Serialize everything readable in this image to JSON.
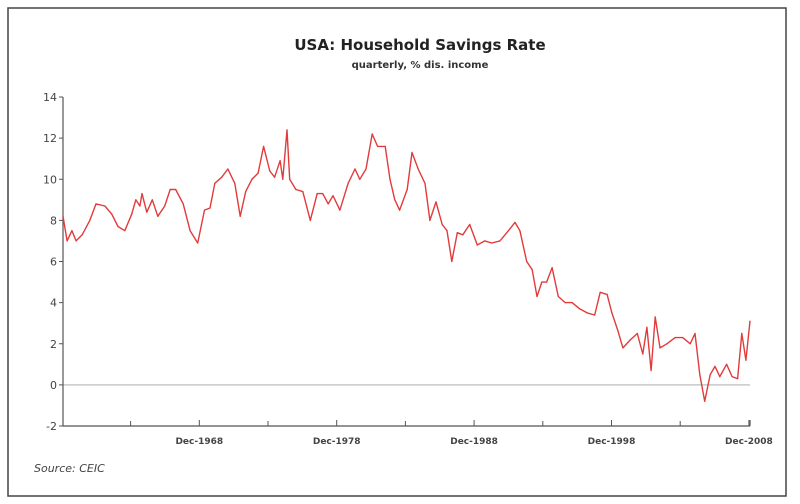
{
  "chart_data": {
    "type": "line",
    "title": "USA: Household Savings Rate",
    "subtitle": "quarterly, % dis. income",
    "xlabel": "",
    "ylabel": "",
    "source": "Source: CEIC",
    "xlim": [
      1959,
      2009
    ],
    "ylim": [
      -2,
      14
    ],
    "yticks": [
      -2,
      0,
      2,
      4,
      6,
      8,
      10,
      12,
      14
    ],
    "xticks_minor": [
      1963.92,
      1973.92,
      1983.92,
      1993.92,
      2003.92
    ],
    "xticks": [
      {
        "value": 1968.92,
        "label": "Dec-1968"
      },
      {
        "value": 1978.92,
        "label": "Dec-1978"
      },
      {
        "value": 1988.92,
        "label": "Dec-1988"
      },
      {
        "value": 1998.92,
        "label": "Dec-1998"
      },
      {
        "value": 2008.92,
        "label": "Dec-2008"
      }
    ],
    "reference_line": 0,
    "colors": {
      "series": "#e23b3b",
      "reference": "#c8c8c8",
      "axis": "#555555",
      "frame": "#444444"
    },
    "series": [
      {
        "name": "Household Savings Rate",
        "x": [
          1959.0,
          1959.3,
          1959.65,
          1959.95,
          1960.4,
          1960.95,
          1961.4,
          1962.05,
          1962.55,
          1963.0,
          1963.5,
          1964.0,
          1964.3,
          1964.6,
          1964.75,
          1965.1,
          1965.5,
          1965.9,
          1966.4,
          1966.8,
          1967.2,
          1967.75,
          1968.25,
          1968.8,
          1969.3,
          1969.7,
          1970.05,
          1970.55,
          1971.0,
          1971.5,
          1971.9,
          1972.3,
          1972.75,
          1973.2,
          1973.6,
          1974.05,
          1974.4,
          1974.8,
          1975.0,
          1975.3,
          1975.5,
          1975.95,
          1976.45,
          1977.0,
          1977.5,
          1977.9,
          1978.3,
          1978.65,
          1979.15,
          1979.75,
          1980.25,
          1980.6,
          1981.05,
          1981.5,
          1981.9,
          1982.45,
          1982.8,
          1983.15,
          1983.5,
          1984.05,
          1984.4,
          1984.85,
          1985.35,
          1985.7,
          1986.15,
          1986.6,
          1986.95,
          1987.3,
          1987.7,
          1988.1,
          1988.6,
          1989.15,
          1989.7,
          1990.2,
          1990.8,
          1991.3,
          1991.9,
          1992.25,
          1992.75,
          1993.15,
          1993.5,
          1993.85,
          1994.2,
          1994.6,
          1995.05,
          1995.55,
          1996.05,
          1996.6,
          1997.15,
          1997.7,
          1998.1,
          1998.6,
          1998.95,
          1999.4,
          1999.75,
          2000.3,
          2000.8,
          2001.2,
          2001.5,
          2001.8,
          2002.1,
          2002.45,
          2002.95,
          2003.55,
          2004.1,
          2004.65,
          2005.0,
          2005.35,
          2005.7,
          2006.1,
          2006.45,
          2006.8,
          2007.3,
          2007.7,
          2008.1,
          2008.4,
          2008.7,
          2009.0
        ],
        "values": [
          8.2,
          7.0,
          7.5,
          7.0,
          7.3,
          8.0,
          8.8,
          8.7,
          8.3,
          7.7,
          7.5,
          8.3,
          9.0,
          8.7,
          9.3,
          8.4,
          9.0,
          8.2,
          8.7,
          9.5,
          9.5,
          8.8,
          7.5,
          6.9,
          8.5,
          8.6,
          9.8,
          10.1,
          10.5,
          9.8,
          8.2,
          9.4,
          10.0,
          10.3,
          11.6,
          10.4,
          10.1,
          10.9,
          10.0,
          12.4,
          10.0,
          9.5,
          9.4,
          8.0,
          9.3,
          9.3,
          8.8,
          9.2,
          8.5,
          9.8,
          10.5,
          10.0,
          10.5,
          12.2,
          11.6,
          11.6,
          10.0,
          9.0,
          8.5,
          9.5,
          11.3,
          10.5,
          9.8,
          8.0,
          8.9,
          7.8,
          7.5,
          6.0,
          7.4,
          7.3,
          7.8,
          6.8,
          7.0,
          6.9,
          7.0,
          7.4,
          7.9,
          7.5,
          6.0,
          5.6,
          4.3,
          5.0,
          5.0,
          5.7,
          4.3,
          4.0,
          4.0,
          3.7,
          3.5,
          3.4,
          4.5,
          4.4,
          3.5,
          2.6,
          1.8,
          2.2,
          2.5,
          1.5,
          2.8,
          0.7,
          3.3,
          1.8,
          2.0,
          2.3,
          2.3,
          2.0,
          2.5,
          0.5,
          -0.8,
          0.5,
          0.9,
          0.4,
          1.0,
          0.4,
          0.3,
          2.5,
          1.2,
          3.1
        ]
      }
    ]
  }
}
